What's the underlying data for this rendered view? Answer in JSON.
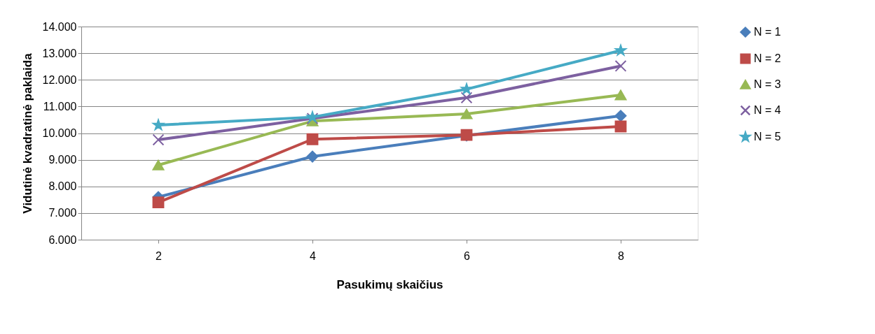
{
  "chart_data": {
    "type": "line",
    "xlabel": "Pasukimų skaičius",
    "ylabel": "Vidutinė kvadratinė paklaida",
    "categories": [
      "2",
      "4",
      "6",
      "8"
    ],
    "series": [
      {
        "name": "N = 1",
        "color": "#4a7ebb",
        "marker": "diamond",
        "values": [
          7.6,
          9.12,
          9.91,
          10.65
        ]
      },
      {
        "name": "N = 2",
        "color": "#be4b48",
        "marker": "square",
        "values": [
          7.4,
          9.77,
          9.93,
          10.25
        ]
      },
      {
        "name": "N = 3",
        "color": "#98b954",
        "marker": "triangle",
        "values": [
          8.8,
          10.45,
          10.72,
          11.43
        ]
      },
      {
        "name": "N = 4",
        "color": "#7d60a0",
        "marker": "cross",
        "values": [
          9.75,
          10.55,
          11.33,
          12.52
        ]
      },
      {
        "name": "N = 5",
        "color": "#46aac5",
        "marker": "star",
        "values": [
          10.3,
          10.6,
          11.65,
          13.1
        ]
      }
    ],
    "ylim": [
      6,
      14
    ],
    "yticks": [
      {
        "value": 6,
        "label": "6.000"
      },
      {
        "value": 7,
        "label": "7.000"
      },
      {
        "value": 8,
        "label": "8.000"
      },
      {
        "value": 9,
        "label": "9.000"
      },
      {
        "value": 10,
        "label": "10.000"
      },
      {
        "value": 11,
        "label": "11.000"
      },
      {
        "value": 12,
        "label": "12.000"
      },
      {
        "value": 13,
        "label": "13.000"
      },
      {
        "value": 14,
        "label": "14.000"
      }
    ],
    "grid": "y",
    "legend": "right",
    "line_style": "solid"
  }
}
